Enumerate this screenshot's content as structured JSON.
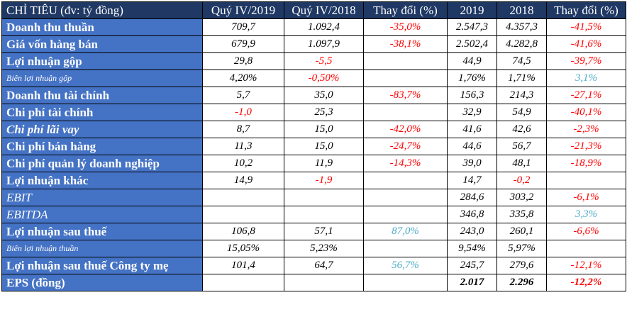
{
  "header": {
    "label": "CHỈ TIÊU (đv: tỷ đồng)",
    "cols": [
      "Quý IV/2019",
      "Quý IV/2018",
      "Thay đổi (%)",
      "2019",
      "2018",
      "Thay đổi (%)"
    ]
  },
  "rows": [
    {
      "label": "Doanh thu thuần",
      "style": "bold",
      "values": [
        "709,7",
        "1.092,4",
        "-35,0%",
        "2.547,3",
        "4.357,3",
        "-41,5%"
      ]
    },
    {
      "label": "Giá vốn hàng bán",
      "style": "bold",
      "values": [
        "679,9",
        "1.097,9",
        "-38,1%",
        "2.502,4",
        "4.282,8",
        "-41,6%"
      ]
    },
    {
      "label": "Lợi nhuận gộp",
      "style": "bold",
      "values": [
        "29,8",
        "-5,5",
        "",
        "44,9",
        "74,5",
        "-39,7%"
      ]
    },
    {
      "label": "Biên lợi nhuận gộp",
      "style": "small",
      "values": [
        "4,20%",
        "-0,50%",
        "",
        "1,76%",
        "1,71%",
        "3,1%"
      ]
    },
    {
      "label": "Doanh thu tài chính",
      "style": "bold",
      "values": [
        "5,7",
        "35,0",
        "-83,7%",
        "156,3",
        "214,3",
        "-27,1%"
      ]
    },
    {
      "label": "Chi phí tài chính",
      "style": "bold",
      "values": [
        "-1,0",
        "25,3",
        "",
        "32,9",
        "54,9",
        "-40,1%"
      ]
    },
    {
      "label": "Chi phí lãi vay",
      "style": "bold-italic",
      "values": [
        "8,7",
        "15,0",
        "-42,0%",
        "41,6",
        "42,6",
        "-2,3%"
      ]
    },
    {
      "label": "Chi phí bán hàng",
      "style": "bold",
      "values": [
        "11,3",
        "15,0",
        "-24,7%",
        "44,6",
        "56,7",
        "-21,3%"
      ]
    },
    {
      "label": "Chi phí quản lý doanh nghiệp",
      "style": "bold",
      "values": [
        "10,2",
        "11,9",
        "-14,3%",
        "39,0",
        "48,1",
        "-18,9%"
      ]
    },
    {
      "label": "Lợi nhuận khác",
      "style": "bold",
      "values": [
        "14,9",
        "-1,9",
        "",
        "14,7",
        "-0,2",
        ""
      ]
    },
    {
      "label": "EBIT",
      "style": "italic",
      "values": [
        "",
        "",
        "",
        "284,6",
        "303,2",
        "-6,1%"
      ]
    },
    {
      "label": "EBITDA",
      "style": "italic",
      "values": [
        "",
        "",
        "",
        "346,8",
        "335,8",
        "3,3%"
      ]
    },
    {
      "label": "Lợi nhuận sau thuế",
      "style": "bold",
      "values": [
        "106,8",
        "57,1",
        "87,0%",
        "243,0",
        "260,1",
        "-6,6%"
      ]
    },
    {
      "label": "Biên lợi nhuận thuần",
      "style": "small",
      "values": [
        "15,05%",
        "5,23%",
        "",
        "9,54%",
        "5,97%",
        ""
      ]
    },
    {
      "label": "Lợi nhuận sau thuế Công ty mẹ",
      "style": "bold",
      "values": [
        "101,4",
        "64,7",
        "56,7%",
        "245,7",
        "279,6",
        "-12,1%"
      ]
    },
    {
      "label": "EPS (đồng)",
      "style": "bold",
      "values": [
        "",
        "",
        "",
        "2.017",
        "2.296",
        "-12,2%"
      ],
      "bold_values": true
    }
  ],
  "colors": {
    "header_bg": "#1f3864",
    "label_bg": "#4472c4",
    "negative": "#ff0000",
    "positive": "#4bacc6"
  }
}
